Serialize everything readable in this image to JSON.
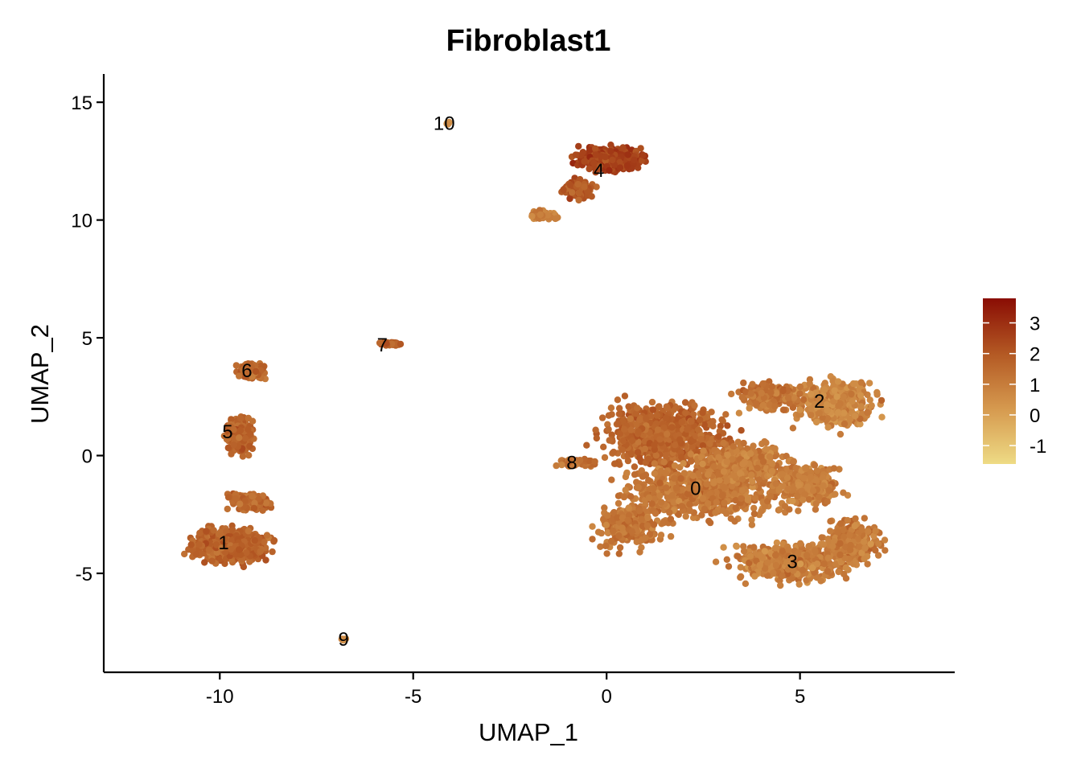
{
  "chart_data": {
    "type": "scatter",
    "title": "Fibroblast1",
    "xlabel": "UMAP_1",
    "ylabel": "UMAP_2",
    "xlim": [
      -13,
      9
    ],
    "ylim": [
      -9.2,
      16.2
    ],
    "x_ticks": [
      -10,
      -5,
      0,
      5
    ],
    "y_ticks": [
      -5,
      0,
      5,
      10,
      15
    ],
    "x_tick_labels": [
      "-10",
      "-5",
      "0",
      "5"
    ],
    "y_tick_labels": [
      "-5",
      "0",
      "5",
      "10",
      "15"
    ],
    "grid": false,
    "colorbar": {
      "range": [
        -1.6,
        3.8
      ],
      "ticks": [
        3,
        2,
        1,
        0,
        -1
      ],
      "tick_labels": [
        "3",
        "2",
        "1",
        "0",
        "-1"
      ],
      "colors": [
        "#eedb85",
        "#d69a4f",
        "#b45a24",
        "#8a0d04"
      ],
      "position": "right"
    },
    "clusters": [
      {
        "label": "0",
        "x": 2.3,
        "y": -1.4,
        "mean_expr": 1.3
      },
      {
        "label": "1",
        "x": -9.9,
        "y": -3.7,
        "mean_expr": 1.8
      },
      {
        "label": "2",
        "x": 5.5,
        "y": 2.3,
        "mean_expr": 0.9
      },
      {
        "label": "3",
        "x": 4.8,
        "y": -4.5,
        "mean_expr": 1.1
      },
      {
        "label": "4",
        "x": -0.2,
        "y": 12.1,
        "mean_expr": 2.6
      },
      {
        "label": "5",
        "x": -9.8,
        "y": 1.0,
        "mean_expr": 1.7
      },
      {
        "label": "6",
        "x": -9.3,
        "y": 3.6,
        "mean_expr": 1.6
      },
      {
        "label": "7",
        "x": -5.8,
        "y": 4.7,
        "mean_expr": 1.9
      },
      {
        "label": "8",
        "x": -0.9,
        "y": -0.3,
        "mean_expr": 1.5
      },
      {
        "label": "9",
        "x": -6.8,
        "y": -7.8,
        "mean_expr": 0.6
      },
      {
        "label": "10",
        "x": -4.2,
        "y": 14.1,
        "mean_expr": 0.3
      }
    ]
  }
}
